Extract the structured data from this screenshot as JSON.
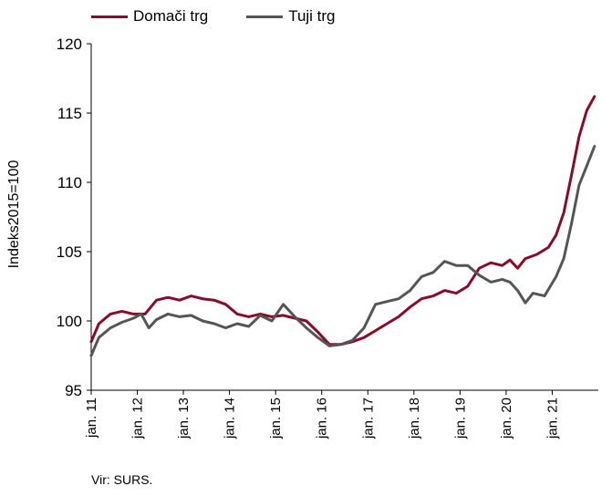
{
  "chart_data": {
    "type": "line",
    "ylabel": "Indeks2015=100",
    "ylim": [
      95,
      120
    ],
    "yticks": [
      "95",
      "100",
      "105",
      "110",
      "115",
      "120"
    ],
    "x_tick_labels": [
      "jan. 11",
      "jan. 12",
      "jan. 13",
      "jan. 14",
      "jan. 15",
      "jan. 16",
      "jan. 17",
      "jan. 18",
      "jan. 19",
      "jan. 20",
      "jan. 21"
    ],
    "x_start": "2011-01",
    "x_end": "2021-12",
    "grid": false,
    "legend_position": "top-left",
    "series": [
      {
        "name": "Domači trg",
        "color": "#8b0a27",
        "anchors": [
          [
            "2011-01",
            98.5
          ],
          [
            "2011-03",
            99.8
          ],
          [
            "2011-06",
            100.5
          ],
          [
            "2011-09",
            100.7
          ],
          [
            "2011-12",
            100.5
          ],
          [
            "2012-03",
            100.5
          ],
          [
            "2012-06",
            101.5
          ],
          [
            "2012-09",
            101.7
          ],
          [
            "2012-12",
            101.5
          ],
          [
            "2013-03",
            101.8
          ],
          [
            "2013-06",
            101.6
          ],
          [
            "2013-09",
            101.5
          ],
          [
            "2013-12",
            101.2
          ],
          [
            "2014-03",
            100.5
          ],
          [
            "2014-06",
            100.3
          ],
          [
            "2014-09",
            100.5
          ],
          [
            "2014-12",
            100.3
          ],
          [
            "2015-03",
            100.4
          ],
          [
            "2015-06",
            100.2
          ],
          [
            "2015-09",
            100.0
          ],
          [
            "2015-12",
            99.2
          ],
          [
            "2016-03",
            98.3
          ],
          [
            "2016-06",
            98.3
          ],
          [
            "2016-09",
            98.5
          ],
          [
            "2016-12",
            98.8
          ],
          [
            "2017-03",
            99.3
          ],
          [
            "2017-06",
            99.8
          ],
          [
            "2017-09",
            100.3
          ],
          [
            "2017-12",
            101.0
          ],
          [
            "2018-03",
            101.6
          ],
          [
            "2018-06",
            101.8
          ],
          [
            "2018-09",
            102.2
          ],
          [
            "2018-12",
            102.0
          ],
          [
            "2019-03",
            102.5
          ],
          [
            "2019-06",
            103.8
          ],
          [
            "2019-09",
            104.2
          ],
          [
            "2019-12",
            104.0
          ],
          [
            "2020-02",
            104.4
          ],
          [
            "2020-04",
            103.8
          ],
          [
            "2020-06",
            104.5
          ],
          [
            "2020-09",
            104.8
          ],
          [
            "2020-12",
            105.3
          ],
          [
            "2021-02",
            106.2
          ],
          [
            "2021-04",
            107.8
          ],
          [
            "2021-06",
            110.5
          ],
          [
            "2021-08",
            113.3
          ],
          [
            "2021-10",
            115.2
          ],
          [
            "2021-12",
            116.2
          ]
        ]
      },
      {
        "name": "Tuji trg",
        "color": "#555555",
        "anchors": [
          [
            "2011-01",
            97.5
          ],
          [
            "2011-03",
            98.8
          ],
          [
            "2011-06",
            99.5
          ],
          [
            "2011-09",
            99.9
          ],
          [
            "2011-12",
            100.2
          ],
          [
            "2012-02",
            100.5
          ],
          [
            "2012-04",
            99.5
          ],
          [
            "2012-06",
            100.1
          ],
          [
            "2012-09",
            100.5
          ],
          [
            "2012-12",
            100.3
          ],
          [
            "2013-03",
            100.4
          ],
          [
            "2013-06",
            100.0
          ],
          [
            "2013-09",
            99.8
          ],
          [
            "2013-12",
            99.5
          ],
          [
            "2014-03",
            99.8
          ],
          [
            "2014-06",
            99.6
          ],
          [
            "2014-09",
            100.4
          ],
          [
            "2014-12",
            100.0
          ],
          [
            "2015-03",
            101.2
          ],
          [
            "2015-06",
            100.3
          ],
          [
            "2015-09",
            99.5
          ],
          [
            "2015-12",
            98.8
          ],
          [
            "2016-03",
            98.2
          ],
          [
            "2016-06",
            98.3
          ],
          [
            "2016-09",
            98.6
          ],
          [
            "2016-12",
            99.5
          ],
          [
            "2017-03",
            101.2
          ],
          [
            "2017-06",
            101.4
          ],
          [
            "2017-09",
            101.6
          ],
          [
            "2017-12",
            102.2
          ],
          [
            "2018-03",
            103.2
          ],
          [
            "2018-06",
            103.5
          ],
          [
            "2018-09",
            104.3
          ],
          [
            "2018-12",
            104.0
          ],
          [
            "2019-03",
            104.0
          ],
          [
            "2019-06",
            103.3
          ],
          [
            "2019-09",
            102.8
          ],
          [
            "2019-12",
            103.0
          ],
          [
            "2020-02",
            102.8
          ],
          [
            "2020-04",
            102.2
          ],
          [
            "2020-06",
            101.3
          ],
          [
            "2020-08",
            102.0
          ],
          [
            "2020-11",
            101.8
          ],
          [
            "2021-02",
            103.2
          ],
          [
            "2021-04",
            104.5
          ],
          [
            "2021-06",
            107.0
          ],
          [
            "2021-08",
            109.8
          ],
          [
            "2021-10",
            111.2
          ],
          [
            "2021-12",
            112.6
          ]
        ]
      }
    ]
  },
  "source": "Vir: SURS."
}
